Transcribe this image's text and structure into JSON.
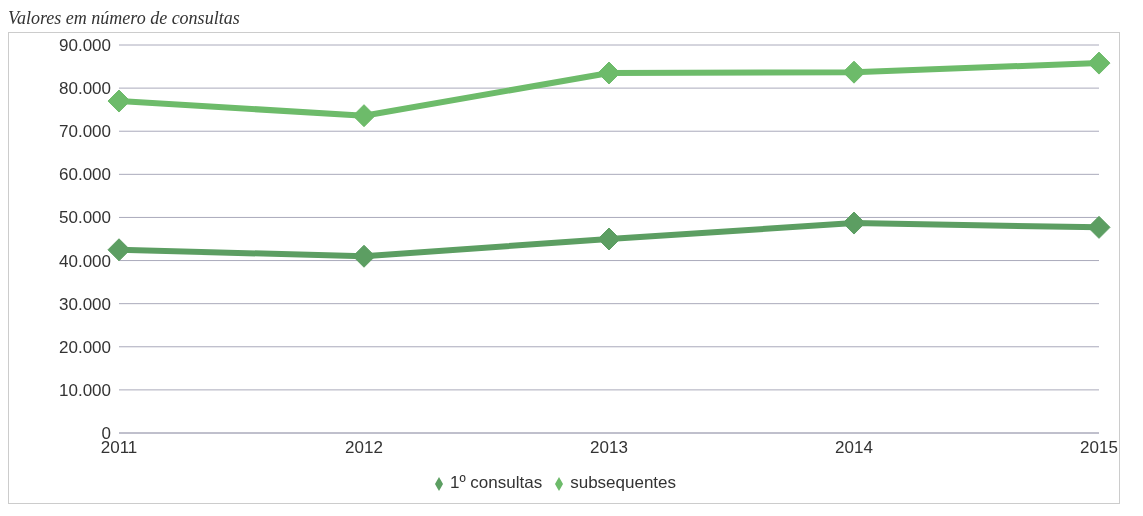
{
  "chart_data": {
    "type": "line",
    "title": "Valores em número de consultas",
    "categories": [
      "2011",
      "2012",
      "2013",
      "2014",
      "2015"
    ],
    "series": [
      {
        "name": "1º consultas",
        "color": "#5c9e62",
        "values": [
          42500,
          41000,
          45000,
          48700,
          47700
        ]
      },
      {
        "name": "subsequentes",
        "color": "#6dbb6a",
        "values": [
          77000,
          73600,
          83500,
          83700,
          85800
        ]
      }
    ],
    "ylim": [
      0,
      90000
    ],
    "yticks": [
      {
        "value": 0,
        "label": "0"
      },
      {
        "value": 10000,
        "label": "10.000"
      },
      {
        "value": 20000,
        "label": "20.000"
      },
      {
        "value": 30000,
        "label": "30.000"
      },
      {
        "value": 40000,
        "label": "40.000"
      },
      {
        "value": 50000,
        "label": "50.000"
      },
      {
        "value": 60000,
        "label": "60.000"
      },
      {
        "value": 70000,
        "label": "70.000"
      },
      {
        "value": 80000,
        "label": "80.000"
      },
      {
        "value": 90000,
        "label": "90.000"
      }
    ],
    "grid": "y",
    "legend": "bottom",
    "marker": "diamond",
    "line_style": "solid"
  }
}
